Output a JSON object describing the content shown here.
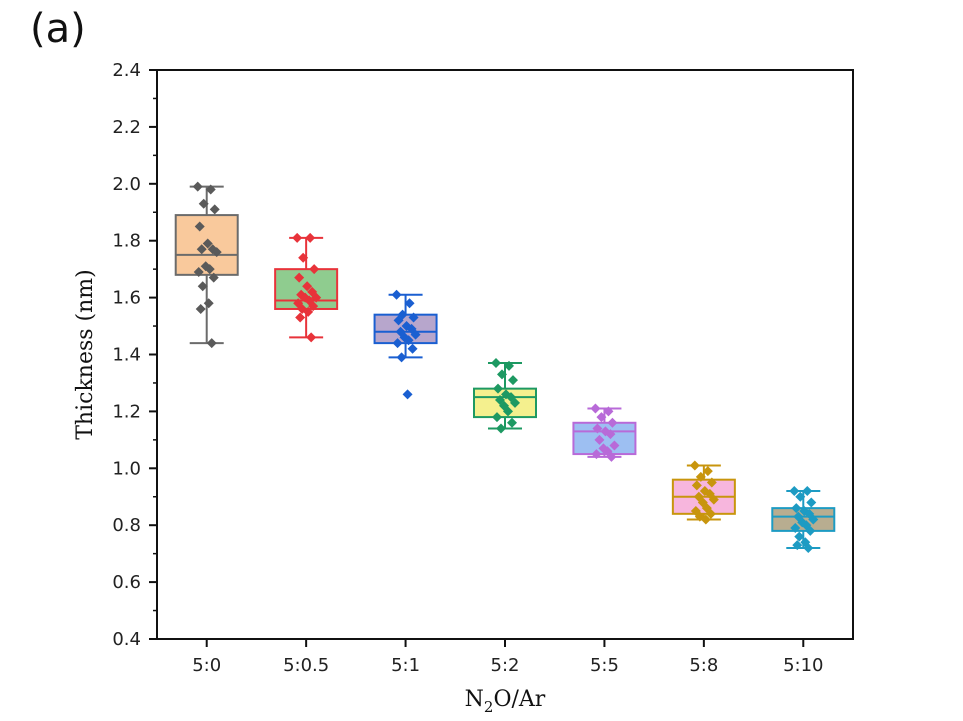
{
  "panel_label": "(a)",
  "chart_data": {
    "type": "box",
    "title": "",
    "xlabel": "N2O/Ar",
    "xlabel_parts": {
      "pre": "N",
      "sub": "2",
      "post": "O/Ar"
    },
    "ylabel": "Thickness (nm)",
    "ylim": [
      0.4,
      2.4
    ],
    "yticks": [
      "0.4",
      "0.6",
      "0.8",
      "1.0",
      "1.2",
      "1.4",
      "1.6",
      "1.8",
      "2.0",
      "2.2",
      "2.4"
    ],
    "categories": [
      "5:0",
      "5:0.5",
      "5:1",
      "5:2",
      "5:5",
      "5:8",
      "5:10"
    ],
    "grid": false,
    "legend": "none",
    "boxes": [
      {
        "category": "5:0",
        "fill": "#f9c99c",
        "edge": "#6b6b6b",
        "point_color": "#5a5a5a",
        "whisker_low": 1.44,
        "q1": 1.68,
        "median": 1.75,
        "q3": 1.89,
        "whisker_high": 1.99,
        "points": [
          1.99,
          1.98,
          1.93,
          1.91,
          1.85,
          1.79,
          1.77,
          1.77,
          1.76,
          1.71,
          1.7,
          1.69,
          1.67,
          1.64,
          1.58,
          1.56,
          1.44
        ]
      },
      {
        "category": "5:0.5",
        "fill": "#8fcc8f",
        "edge": "#e8333a",
        "point_color": "#e8333a",
        "whisker_low": 1.46,
        "q1": 1.56,
        "median": 1.59,
        "q3": 1.7,
        "whisker_high": 1.81,
        "points": [
          1.81,
          1.81,
          1.74,
          1.7,
          1.67,
          1.64,
          1.62,
          1.61,
          1.6,
          1.6,
          1.59,
          1.58,
          1.57,
          1.56,
          1.55,
          1.53,
          1.46
        ]
      },
      {
        "category": "5:1",
        "fill": "#b7a6cc",
        "edge": "#1a5fd1",
        "point_color": "#1a5fd1",
        "whisker_low": 1.39,
        "q1": 1.44,
        "median": 1.48,
        "q3": 1.54,
        "whisker_high": 1.61,
        "points": [
          1.61,
          1.58,
          1.54,
          1.53,
          1.52,
          1.5,
          1.49,
          1.48,
          1.47,
          1.46,
          1.45,
          1.44,
          1.42,
          1.39,
          1.26
        ]
      },
      {
        "category": "5:2",
        "fill": "#f4f08e",
        "edge": "#1d9962",
        "point_color": "#1d9962",
        "whisker_low": 1.14,
        "q1": 1.18,
        "median": 1.25,
        "q3": 1.28,
        "whisker_high": 1.37,
        "points": [
          1.37,
          1.36,
          1.33,
          1.31,
          1.28,
          1.26,
          1.25,
          1.24,
          1.23,
          1.22,
          1.2,
          1.18,
          1.16,
          1.14
        ]
      },
      {
        "category": "5:5",
        "fill": "#9dbff2",
        "edge": "#b86ad8",
        "point_color": "#b86ad8",
        "whisker_low": 1.04,
        "q1": 1.05,
        "median": 1.13,
        "q3": 1.16,
        "whisker_high": 1.21,
        "points": [
          1.21,
          1.2,
          1.18,
          1.16,
          1.14,
          1.13,
          1.12,
          1.1,
          1.08,
          1.07,
          1.06,
          1.05,
          1.04
        ]
      },
      {
        "category": "5:8",
        "fill": "#f7b6dd",
        "edge": "#c8950d",
        "point_color": "#c8950d",
        "whisker_low": 0.82,
        "q1": 0.84,
        "median": 0.9,
        "q3": 0.96,
        "whisker_high": 1.01,
        "points": [
          1.01,
          0.99,
          0.97,
          0.95,
          0.94,
          0.92,
          0.91,
          0.9,
          0.89,
          0.88,
          0.86,
          0.85,
          0.84,
          0.83,
          0.82
        ]
      },
      {
        "category": "5:10",
        "fill": "#b8ad90",
        "edge": "#1d9bc3",
        "point_color": "#1d9bc3",
        "whisker_low": 0.72,
        "q1": 0.78,
        "median": 0.83,
        "q3": 0.86,
        "whisker_high": 0.92,
        "points": [
          0.92,
          0.92,
          0.9,
          0.88,
          0.86,
          0.85,
          0.84,
          0.83,
          0.82,
          0.81,
          0.8,
          0.79,
          0.78,
          0.76,
          0.74,
          0.73,
          0.72
        ]
      }
    ]
  }
}
